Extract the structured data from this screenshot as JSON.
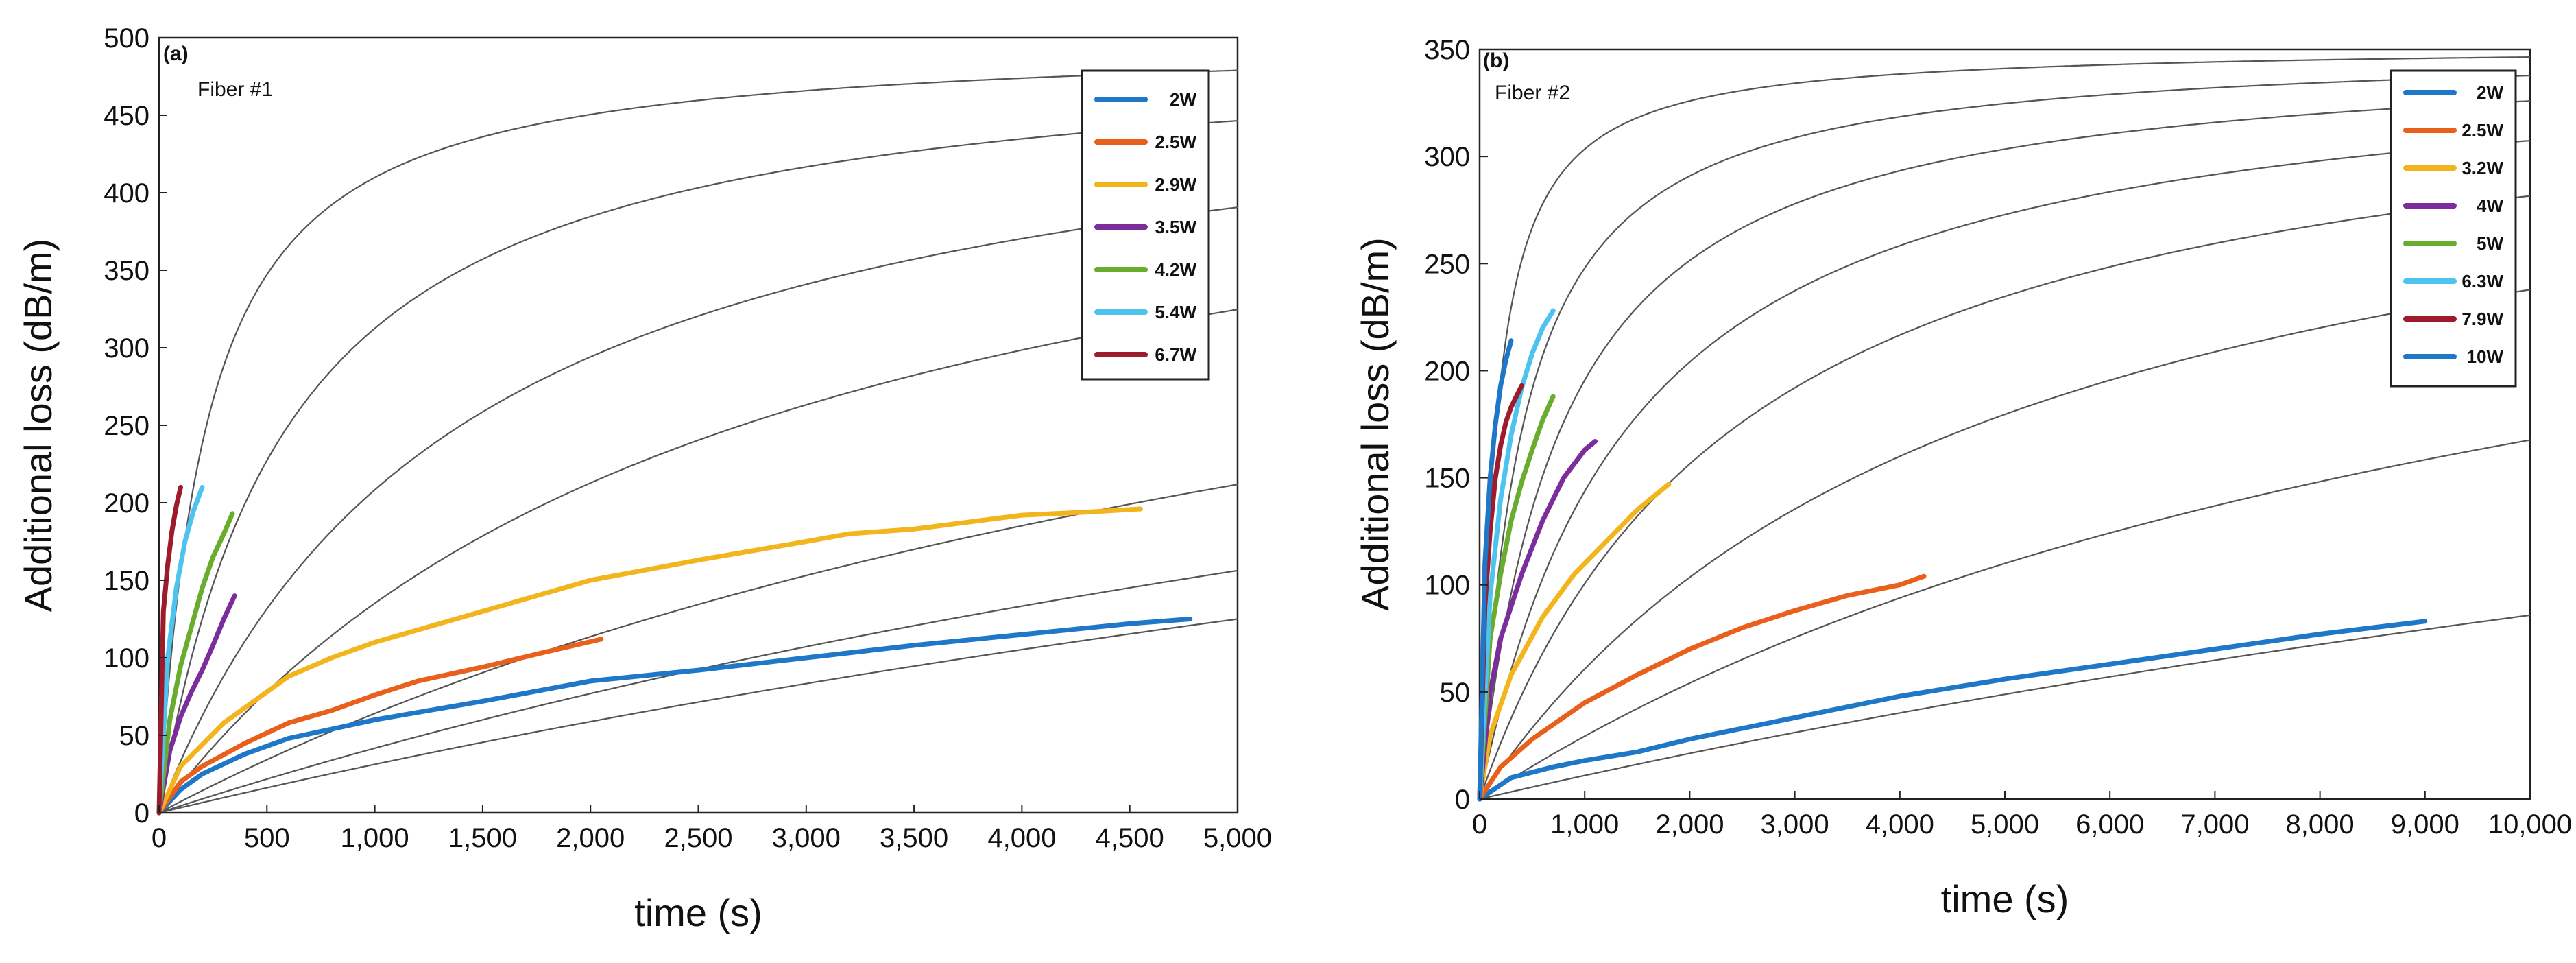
{
  "chart_data": [
    {
      "type": "line",
      "panel_label": "(a)",
      "annotation": "Fiber #1",
      "xlabel": "time (s)",
      "ylabel": "Additional loss  (dB/m)",
      "xlim": [
        0,
        5000
      ],
      "ylim": [
        0,
        500
      ],
      "xticks": [
        0,
        500,
        1000,
        1500,
        2000,
        2500,
        3000,
        3500,
        4000,
        4500,
        5000
      ],
      "xtick_labels": [
        "0",
        "500",
        "1,000",
        "1,500",
        "2,000",
        "2,500",
        "3,000",
        "3,500",
        "4,000",
        "4,500",
        "5,000"
      ],
      "yticks": [
        0,
        50,
        100,
        150,
        200,
        250,
        300,
        350,
        400,
        450,
        500
      ],
      "ytick_labels": [
        "0",
        "50",
        "100",
        "150",
        "200",
        "250",
        "300",
        "350",
        "400",
        "450",
        "500"
      ],
      "grid": false,
      "legend_position": "top-right",
      "series": [
        {
          "name": "2W",
          "color": "#1f77c8",
          "x": [
            0,
            100,
            200,
            400,
            600,
            800,
            1000,
            1500,
            2000,
            2500,
            3000,
            3500,
            4000,
            4500,
            4780
          ],
          "y": [
            0,
            15,
            25,
            38,
            48,
            54,
            60,
            72,
            85,
            92,
            100,
            108,
            115,
            122,
            125
          ]
        },
        {
          "name": "2.5W",
          "color": "#e8601c",
          "x": [
            0,
            100,
            200,
            400,
            600,
            800,
            1000,
            1200,
            1500,
            1800,
            2050
          ],
          "y": [
            0,
            20,
            30,
            45,
            58,
            66,
            76,
            85,
            94,
            104,
            112
          ]
        },
        {
          "name": "2.9W",
          "color": "#f2b51e",
          "x": [
            0,
            100,
            300,
            600,
            800,
            1000,
            1500,
            2000,
            2500,
            3000,
            3200,
            3500,
            4000,
            4300,
            4550
          ],
          "y": [
            0,
            30,
            58,
            88,
            100,
            110,
            130,
            150,
            163,
            175,
            180,
            183,
            192,
            194,
            196
          ]
        },
        {
          "name": "3.5W",
          "color": "#7b2d9b",
          "x": [
            0,
            50,
            100,
            150,
            200,
            250,
            300,
            350
          ],
          "y": [
            0,
            40,
            62,
            78,
            92,
            108,
            125,
            140
          ]
        },
        {
          "name": "4.2W",
          "color": "#6aac2e",
          "x": [
            0,
            50,
            100,
            150,
            200,
            250,
            300,
            340
          ],
          "y": [
            0,
            60,
            95,
            120,
            145,
            165,
            180,
            193
          ]
        },
        {
          "name": "5.4W",
          "color": "#4fc3f0",
          "x": [
            0,
            40,
            80,
            120,
            160,
            200
          ],
          "y": [
            0,
            100,
            145,
            175,
            195,
            210
          ]
        },
        {
          "name": "6.7W",
          "color": "#9e1b2e",
          "x": [
            0,
            20,
            40,
            60,
            80,
            100
          ],
          "y": [
            0,
            130,
            160,
            182,
            198,
            210
          ]
        }
      ],
      "fits": [
        {
          "a": 500,
          "k": 220
        },
        {
          "a": 500,
          "k": 600
        },
        {
          "a": 500,
          "k": 1400
        },
        {
          "a": 500,
          "k": 2700
        },
        {
          "a": 500,
          "k": 6800
        },
        {
          "a": 500,
          "k": 11000
        },
        {
          "a": 500,
          "k": 15000
        }
      ]
    },
    {
      "type": "line",
      "panel_label": "(b)",
      "annotation": "Fiber #2",
      "xlabel": "time (s)",
      "ylabel": "Additional loss  (dB/m)",
      "xlim": [
        0,
        10000
      ],
      "ylim": [
        0,
        350
      ],
      "xticks": [
        0,
        1000,
        2000,
        3000,
        4000,
        5000,
        6000,
        7000,
        8000,
        9000,
        10000
      ],
      "xtick_labels": [
        "0",
        "1,000",
        "2,000",
        "3,000",
        "4,000",
        "5,000",
        "6,000",
        "7,000",
        "8,000",
        "9,000",
        "10,000"
      ],
      "yticks": [
        0,
        50,
        100,
        150,
        200,
        250,
        300,
        350
      ],
      "ytick_labels": [
        "0",
        "50",
        "100",
        "150",
        "200",
        "250",
        "300",
        "350"
      ],
      "grid": false,
      "legend_position": "top-right",
      "series": [
        {
          "name": "2W",
          "color": "#1f77c8",
          "x": [
            0,
            300,
            700,
            1000,
            1500,
            2000,
            3000,
            4000,
            5000,
            6000,
            7000,
            8000,
            9000
          ],
          "y": [
            0,
            10,
            15,
            18,
            22,
            28,
            38,
            48,
            56,
            63,
            70,
            77,
            83
          ]
        },
        {
          "name": "2.5W",
          "color": "#e8601c",
          "x": [
            0,
            200,
            500,
            1000,
            1500,
            2000,
            2500,
            3000,
            3500,
            4000,
            4230
          ],
          "y": [
            0,
            15,
            28,
            45,
            58,
            70,
            80,
            88,
            95,
            100,
            104
          ]
        },
        {
          "name": "3.2W",
          "color": "#f2b51e",
          "x": [
            0,
            100,
            300,
            600,
            900,
            1200,
            1500,
            1800
          ],
          "y": [
            0,
            30,
            58,
            85,
            105,
            120,
            135,
            147
          ]
        },
        {
          "name": "4W",
          "color": "#7b2d9b",
          "x": [
            0,
            100,
            200,
            400,
            600,
            800,
            1000,
            1100
          ],
          "y": [
            0,
            50,
            75,
            105,
            130,
            150,
            163,
            167
          ]
        },
        {
          "name": "5W",
          "color": "#6aac2e",
          "x": [
            0,
            100,
            200,
            300,
            400,
            500,
            600,
            700
          ],
          "y": [
            0,
            75,
            105,
            130,
            148,
            163,
            177,
            188
          ]
        },
        {
          "name": "6.3W",
          "color": "#4fc3f0",
          "x": [
            0,
            100,
            200,
            300,
            400,
            500,
            600,
            700
          ],
          "y": [
            0,
            95,
            140,
            170,
            192,
            208,
            220,
            228
          ]
        },
        {
          "name": "7.9W",
          "color": "#9e1b2e",
          "x": [
            0,
            50,
            100,
            150,
            200,
            250,
            300,
            350,
            400
          ],
          "y": [
            0,
            90,
            125,
            150,
            165,
            176,
            183,
            188,
            193
          ]
        },
        {
          "name": "10W",
          "color": "#1f77c8",
          "x": [
            0,
            50,
            100,
            150,
            200,
            250,
            300
          ],
          "y": [
            0,
            110,
            150,
            175,
            193,
            205,
            214
          ]
        }
      ],
      "fits": [
        {
          "a": 352,
          "k": 160
        },
        {
          "a": 352,
          "k": 420
        },
        {
          "a": 352,
          "k": 800
        },
        {
          "a": 352,
          "k": 1450
        },
        {
          "a": 352,
          "k": 2500
        },
        {
          "a": 352,
          "k": 4800
        },
        {
          "a": 352,
          "k": 11000
        },
        {
          "a": 352,
          "k": 31000
        }
      ]
    }
  ]
}
